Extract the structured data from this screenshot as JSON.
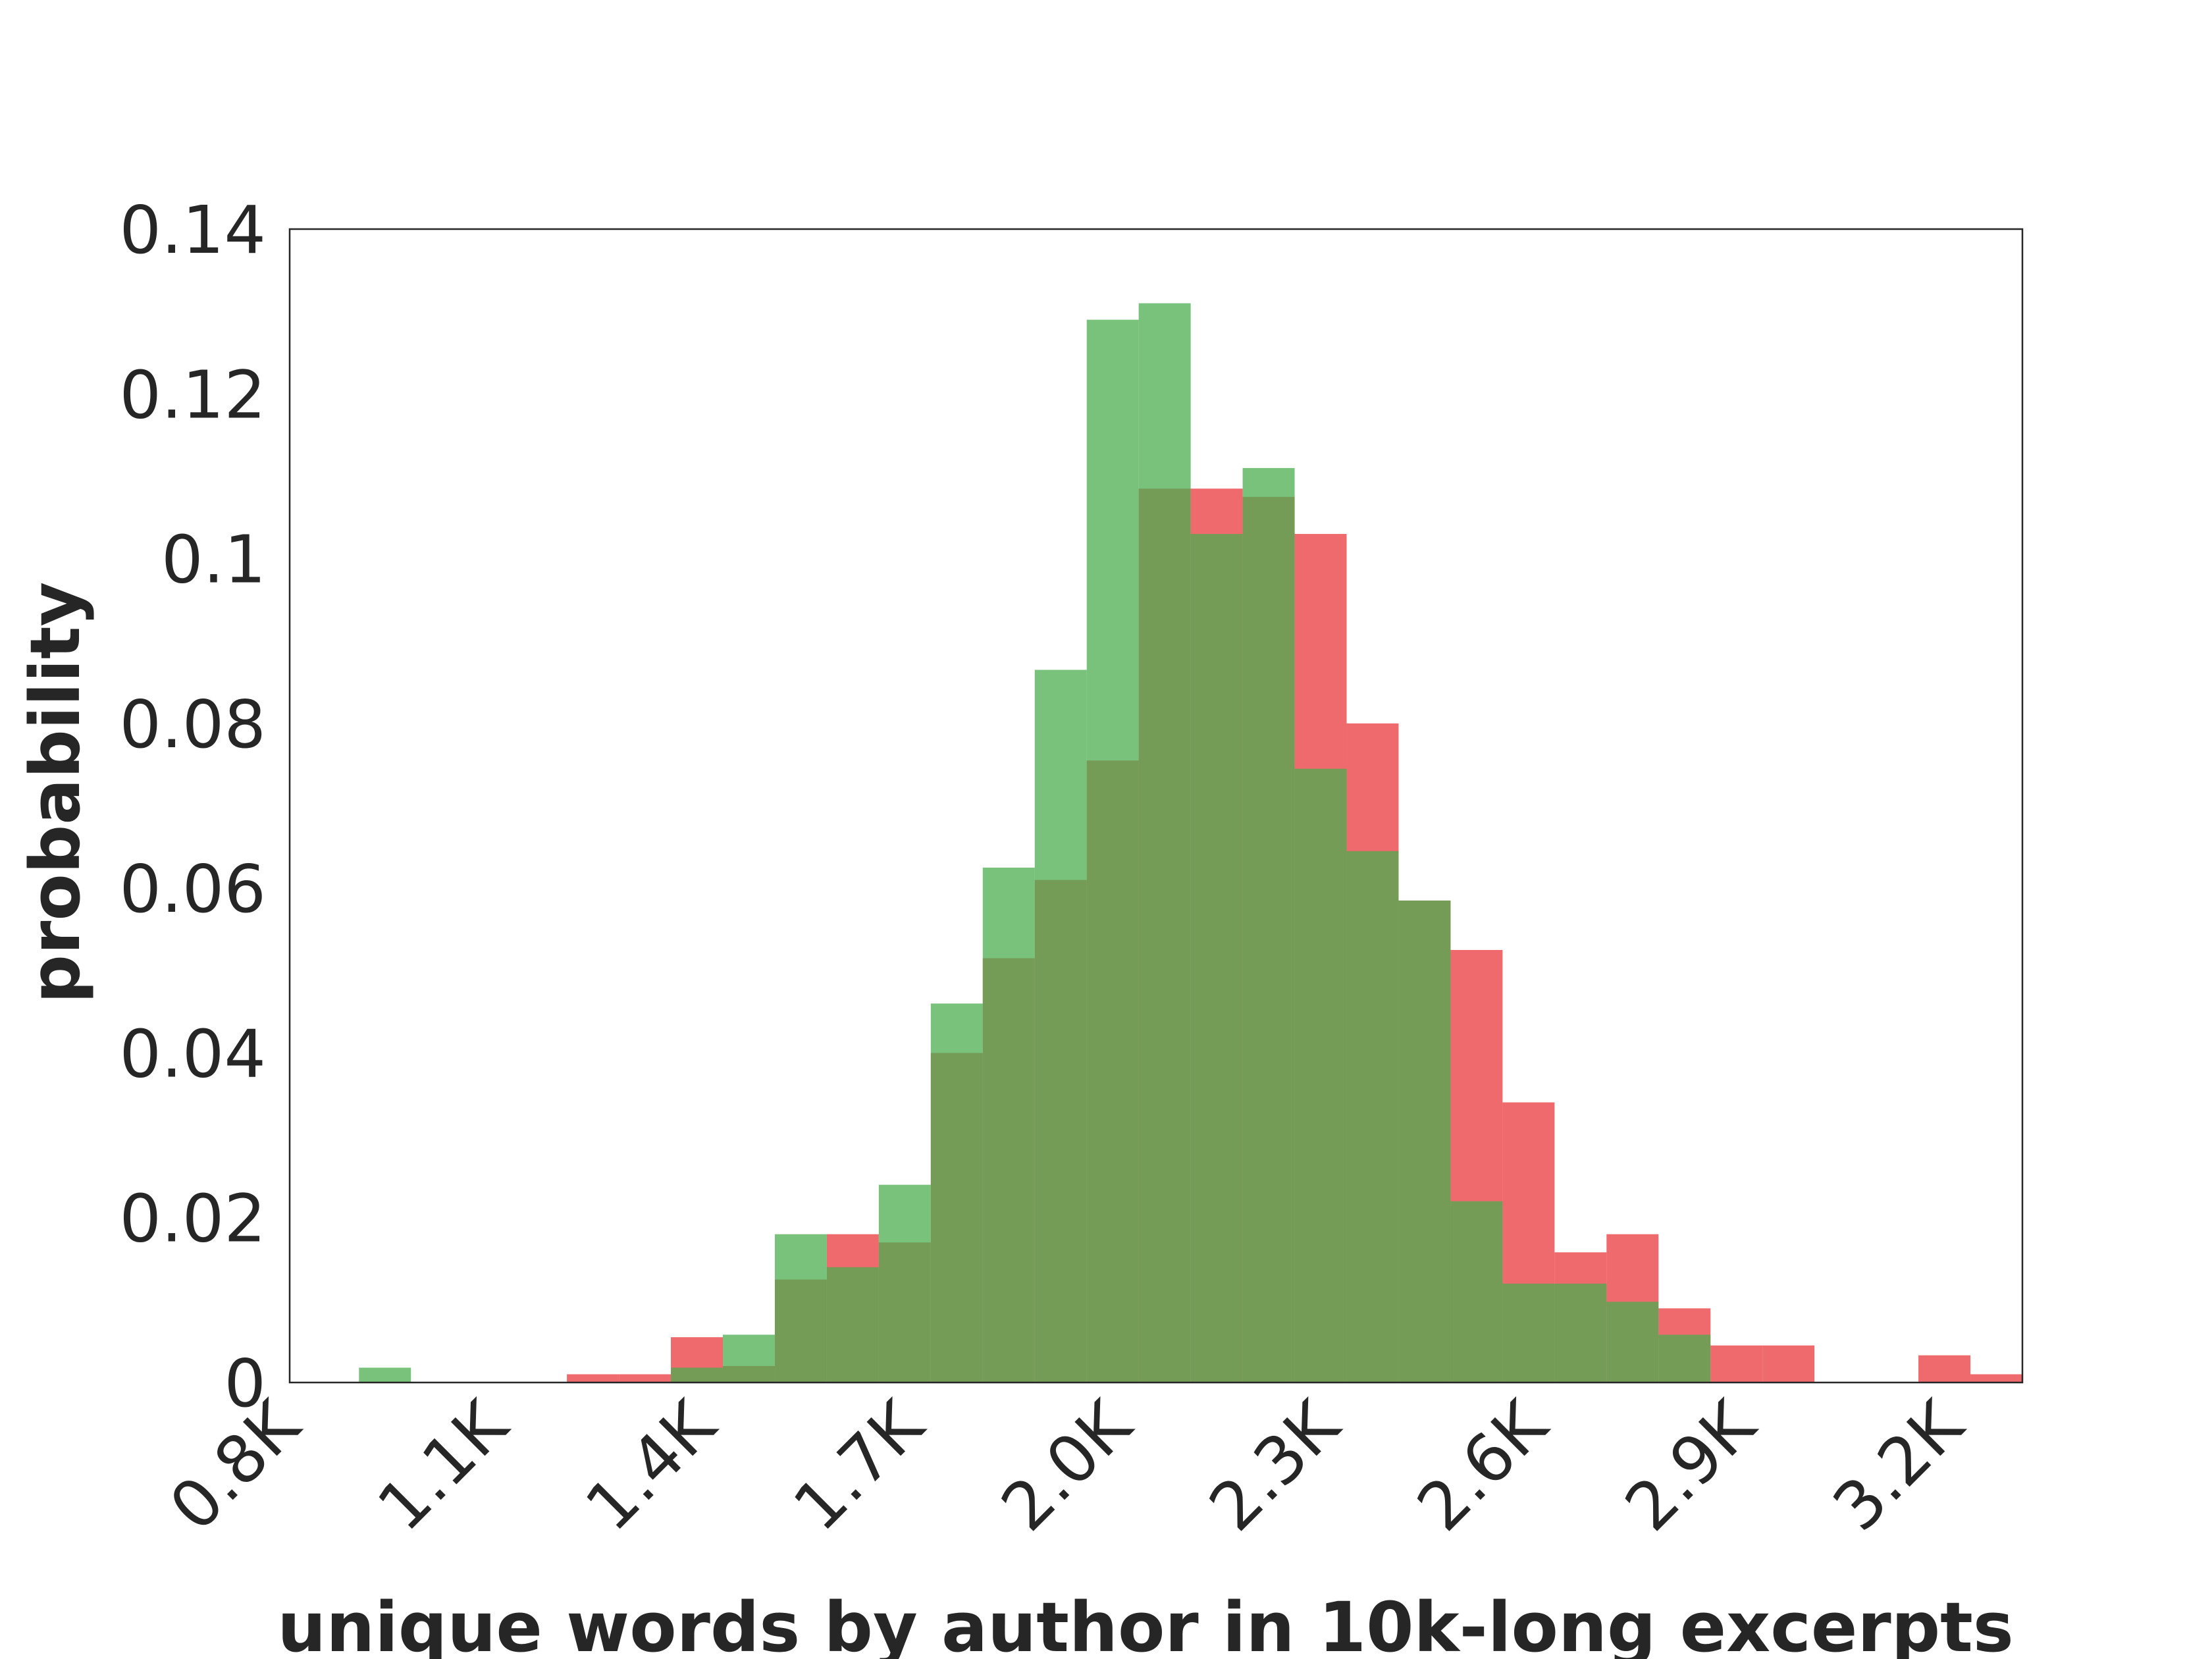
{
  "chart_data": {
    "type": "bar",
    "subtype": "overlapping-histogram",
    "title": "",
    "xlabel": "unique words by author in 10k-long excerpts",
    "ylabel": "probability",
    "xlim": [
      800,
      3300
    ],
    "ylim": [
      0,
      0.14
    ],
    "bin_width": 75,
    "x_ticks": [
      {
        "value": 800,
        "label": "0.8K"
      },
      {
        "value": 1100,
        "label": "1.1K"
      },
      {
        "value": 1400,
        "label": "1.4K"
      },
      {
        "value": 1700,
        "label": "1.7K"
      },
      {
        "value": 2000,
        "label": "2.0K"
      },
      {
        "value": 2300,
        "label": "2.3K"
      },
      {
        "value": 2600,
        "label": "2.6K"
      },
      {
        "value": 2900,
        "label": "2.9K"
      },
      {
        "value": 3200,
        "label": "3.2K"
      }
    ],
    "y_ticks": [
      {
        "value": 0,
        "label": "0"
      },
      {
        "value": 0.02,
        "label": "0.02"
      },
      {
        "value": 0.04,
        "label": "0.04"
      },
      {
        "value": 0.06,
        "label": "0.06"
      },
      {
        "value": 0.08,
        "label": "0.08"
      },
      {
        "value": 0.1,
        "label": "0.1"
      },
      {
        "value": 0.12,
        "label": "0.12"
      },
      {
        "value": 0.14,
        "label": "0.14"
      }
    ],
    "grid": false,
    "legend": "none",
    "series": [
      {
        "color": "#e8383b",
        "opacity": 0.75,
        "bins": [
          {
            "x0": 1200,
            "x1": 1275,
            "y": 0.001
          },
          {
            "x0": 1275,
            "x1": 1350,
            "y": 0.001
          },
          {
            "x0": 1350,
            "x1": 1425,
            "y": 0.0055
          },
          {
            "x0": 1425,
            "x1": 1500,
            "y": 0.002
          },
          {
            "x0": 1500,
            "x1": 1575,
            "y": 0.0125
          },
          {
            "x0": 1575,
            "x1": 1650,
            "y": 0.018
          },
          {
            "x0": 1650,
            "x1": 1725,
            "y": 0.017
          },
          {
            "x0": 1725,
            "x1": 1800,
            "y": 0.04
          },
          {
            "x0": 1800,
            "x1": 1875,
            "y": 0.0515
          },
          {
            "x0": 1875,
            "x1": 1950,
            "y": 0.061
          },
          {
            "x0": 1950,
            "x1": 2025,
            "y": 0.0755
          },
          {
            "x0": 2025,
            "x1": 2100,
            "y": 0.1085
          },
          {
            "x0": 2100,
            "x1": 2175,
            "y": 0.1085
          },
          {
            "x0": 2175,
            "x1": 2250,
            "y": 0.1075
          },
          {
            "x0": 2250,
            "x1": 2325,
            "y": 0.103
          },
          {
            "x0": 2325,
            "x1": 2400,
            "y": 0.08
          },
          {
            "x0": 2400,
            "x1": 2475,
            "y": 0.0585
          },
          {
            "x0": 2475,
            "x1": 2550,
            "y": 0.0525
          },
          {
            "x0": 2550,
            "x1": 2625,
            "y": 0.034
          },
          {
            "x0": 2625,
            "x1": 2700,
            "y": 0.0158
          },
          {
            "x0": 2700,
            "x1": 2775,
            "y": 0.018
          },
          {
            "x0": 2775,
            "x1": 2850,
            "y": 0.009
          },
          {
            "x0": 2850,
            "x1": 2925,
            "y": 0.0045
          },
          {
            "x0": 2925,
            "x1": 3000,
            "y": 0.0045
          },
          {
            "x0": 3000,
            "x1": 3075,
            "y": 0
          },
          {
            "x0": 3075,
            "x1": 3150,
            "y": 0
          },
          {
            "x0": 3150,
            "x1": 3225,
            "y": 0.0033
          },
          {
            "x0": 3225,
            "x1": 3300,
            "y": 0.001
          }
        ]
      },
      {
        "color": "#4cad50",
        "opacity": 0.75,
        "bins": [
          {
            "x0": 900,
            "x1": 975,
            "y": 0.0018
          },
          {
            "x0": 1350,
            "x1": 1425,
            "y": 0.0018
          },
          {
            "x0": 1425,
            "x1": 1500,
            "y": 0.0058
          },
          {
            "x0": 1500,
            "x1": 1575,
            "y": 0.018
          },
          {
            "x0": 1575,
            "x1": 1650,
            "y": 0.014
          },
          {
            "x0": 1650,
            "x1": 1725,
            "y": 0.024
          },
          {
            "x0": 1725,
            "x1": 1800,
            "y": 0.046
          },
          {
            "x0": 1800,
            "x1": 1875,
            "y": 0.0625
          },
          {
            "x0": 1875,
            "x1": 1950,
            "y": 0.0865
          },
          {
            "x0": 1950,
            "x1": 2025,
            "y": 0.129
          },
          {
            "x0": 2025,
            "x1": 2100,
            "y": 0.131
          },
          {
            "x0": 2100,
            "x1": 2175,
            "y": 0.103
          },
          {
            "x0": 2175,
            "x1": 2250,
            "y": 0.111
          },
          {
            "x0": 2250,
            "x1": 2325,
            "y": 0.0745
          },
          {
            "x0": 2325,
            "x1": 2400,
            "y": 0.0645
          },
          {
            "x0": 2400,
            "x1": 2475,
            "y": 0.0585
          },
          {
            "x0": 2475,
            "x1": 2550,
            "y": 0.022
          },
          {
            "x0": 2550,
            "x1": 2625,
            "y": 0.012
          },
          {
            "x0": 2625,
            "x1": 2700,
            "y": 0.012
          },
          {
            "x0": 2700,
            "x1": 2775,
            "y": 0.0098
          },
          {
            "x0": 2775,
            "x1": 2850,
            "y": 0.0058
          }
        ]
      }
    ]
  }
}
